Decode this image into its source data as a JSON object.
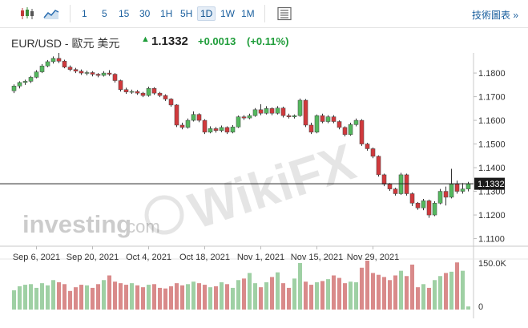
{
  "toolbar": {
    "timeframes": [
      "1",
      "5",
      "15",
      "30",
      "1H",
      "5H",
      "1D",
      "1W",
      "1M"
    ],
    "active_timeframe": "1D",
    "tech_link": "技術圖表 »"
  },
  "header": {
    "symbol": "EUR/USD - 歐元 美元",
    "price": "1.1332",
    "change": "+0.0013",
    "change_pct": "(+0.11%)",
    "up_color": "#1f9d3a"
  },
  "watermarks": {
    "investing_text": "investing",
    "investing_suffix": ".com",
    "wikifx_text": "WikiFX"
  },
  "chart_data": {
    "type": "candlestick",
    "price_axis": {
      "ticks": [
        "1.1800",
        "1.1700",
        "1.1600",
        "1.1500",
        "1.1400",
        "1.1300",
        "1.1200",
        "1.1100"
      ],
      "min": 1.1068,
      "max": 1.1885
    },
    "last_price_label": "1.1332",
    "x_ticks": [
      "Sep 6, 2021",
      "Sep 20, 2021",
      "Oct 4, 2021",
      "Oct 18, 2021",
      "Nov 1, 2021",
      "Nov 15, 2021",
      "Nov 29, 2021"
    ],
    "volume_axis": {
      "ticks": [
        "150.0K",
        "0"
      ],
      "max": 150
    },
    "colors": {
      "up": "#54b85e",
      "down": "#d0393c",
      "up_volume": "#9fd0a4",
      "down_volume": "#d98a8a",
      "axis": "#bbbbbb"
    },
    "candles": [
      [
        1.1725,
        1.1745,
        1.1715,
        1.1752
      ],
      [
        1.1745,
        1.176,
        1.1735,
        1.1765
      ],
      [
        1.176,
        1.1765,
        1.175,
        1.1772
      ],
      [
        1.1765,
        1.1782,
        1.1758,
        1.1788
      ],
      [
        1.1782,
        1.1805,
        1.1778,
        1.1812
      ],
      [
        1.1805,
        1.183,
        1.18,
        1.1838
      ],
      [
        1.183,
        1.1848,
        1.1825,
        1.1855
      ],
      [
        1.1848,
        1.1862,
        1.184,
        1.187
      ],
      [
        1.1862,
        1.185,
        1.1842,
        1.1885
      ],
      [
        1.185,
        1.1825,
        1.182,
        1.1856
      ],
      [
        1.1825,
        1.1815,
        1.1808,
        1.1832
      ],
      [
        1.1815,
        1.1808,
        1.18,
        1.1822
      ],
      [
        1.1808,
        1.18,
        1.1792,
        1.1815
      ],
      [
        1.18,
        1.1802,
        1.179,
        1.181
      ],
      [
        1.1802,
        1.1795,
        1.1786,
        1.1808
      ],
      [
        1.1795,
        1.179,
        1.1782,
        1.18
      ],
      [
        1.179,
        1.18,
        1.1785,
        1.1808
      ],
      [
        1.18,
        1.1795,
        1.1788,
        1.1812
      ],
      [
        1.1795,
        1.1768,
        1.176,
        1.18
      ],
      [
        1.1768,
        1.173,
        1.1722,
        1.1772
      ],
      [
        1.173,
        1.172,
        1.1712,
        1.1738
      ],
      [
        1.172,
        1.1722,
        1.1712,
        1.173
      ],
      [
        1.1722,
        1.1715,
        1.1708,
        1.1728
      ],
      [
        1.1715,
        1.1705,
        1.1698,
        1.172
      ],
      [
        1.1705,
        1.1735,
        1.17,
        1.1742
      ],
      [
        1.1735,
        1.1715,
        1.1708,
        1.174
      ],
      [
        1.1715,
        1.1705,
        1.1698,
        1.172
      ],
      [
        1.1705,
        1.169,
        1.1682,
        1.171
      ],
      [
        1.169,
        1.1665,
        1.1658,
        1.1694
      ],
      [
        1.1665,
        1.158,
        1.1572,
        1.1668
      ],
      [
        1.158,
        1.157,
        1.1562,
        1.159
      ],
      [
        1.157,
        1.16,
        1.1565,
        1.1608
      ],
      [
        1.16,
        1.1625,
        1.1595,
        1.1638
      ],
      [
        1.1625,
        1.16,
        1.1592,
        1.163
      ],
      [
        1.16,
        1.155,
        1.1542,
        1.1605
      ],
      [
        1.155,
        1.1565,
        1.1545,
        1.1575
      ],
      [
        1.1565,
        1.1557,
        1.1548,
        1.1572
      ],
      [
        1.1557,
        1.157,
        1.155,
        1.1578
      ],
      [
        1.157,
        1.155,
        1.1542,
        1.1575
      ],
      [
        1.155,
        1.1572,
        1.1545,
        1.158
      ],
      [
        1.1572,
        1.1615,
        1.1568,
        1.162
      ],
      [
        1.1615,
        1.161,
        1.1602,
        1.1622
      ],
      [
        1.161,
        1.162,
        1.1605,
        1.1628
      ],
      [
        1.162,
        1.1645,
        1.1615,
        1.1652
      ],
      [
        1.1645,
        1.163,
        1.1622,
        1.1668
      ],
      [
        1.163,
        1.165,
        1.1625,
        1.166
      ],
      [
        1.165,
        1.163,
        1.1622,
        1.1655
      ],
      [
        1.163,
        1.1652,
        1.1625,
        1.166
      ],
      [
        1.1652,
        1.162,
        1.1612,
        1.1658
      ],
      [
        1.162,
        1.1615,
        1.1608,
        1.1628
      ],
      [
        1.1615,
        1.162,
        1.1608,
        1.1625
      ],
      [
        1.162,
        1.1685,
        1.1615,
        1.1692
      ],
      [
        1.1685,
        1.158,
        1.1572,
        1.169
      ],
      [
        1.158,
        1.155,
        1.1542,
        1.159
      ],
      [
        1.155,
        1.162,
        1.1545,
        1.1625
      ],
      [
        1.162,
        1.1595,
        1.1588,
        1.1628
      ],
      [
        1.1595,
        1.1615,
        1.1588,
        1.1622
      ],
      [
        1.1615,
        1.1595,
        1.1588,
        1.1622
      ],
      [
        1.1595,
        1.157,
        1.1562,
        1.16
      ],
      [
        1.157,
        1.154,
        1.1532,
        1.1575
      ],
      [
        1.154,
        1.1582,
        1.1535,
        1.159
      ],
      [
        1.1582,
        1.16,
        1.1575,
        1.1608
      ],
      [
        1.16,
        1.15,
        1.1492,
        1.1605
      ],
      [
        1.15,
        1.148,
        1.1472,
        1.1505
      ],
      [
        1.148,
        1.1448,
        1.144,
        1.1485
      ],
      [
        1.1448,
        1.137,
        1.1362,
        1.1452
      ],
      [
        1.137,
        1.133,
        1.1322,
        1.1375
      ],
      [
        1.133,
        1.131,
        1.1302,
        1.1335
      ],
      [
        1.131,
        1.129,
        1.1282,
        1.1315
      ],
      [
        1.129,
        1.137,
        1.1285,
        1.1378
      ],
      [
        1.137,
        1.129,
        1.1282,
        1.1375
      ],
      [
        1.129,
        1.125,
        1.1238,
        1.1295
      ],
      [
        1.125,
        1.123,
        1.1222,
        1.1255
      ],
      [
        1.123,
        1.126,
        1.122,
        1.1268
      ],
      [
        1.126,
        1.12,
        1.1188,
        1.1265
      ],
      [
        1.12,
        1.125,
        1.1195,
        1.1258
      ],
      [
        1.125,
        1.13,
        1.1245,
        1.131
      ],
      [
        1.13,
        1.1275,
        1.124,
        1.132
      ],
      [
        1.1275,
        1.133,
        1.127,
        1.1395
      ],
      [
        1.133,
        1.13,
        1.129,
        1.1345
      ],
      [
        1.13,
        1.131,
        1.129,
        1.1335
      ],
      [
        1.131,
        1.1332,
        1.13,
        1.134
      ]
    ],
    "volumes": [
      62,
      75,
      80,
      82,
      70,
      85,
      78,
      95,
      88,
      82,
      60,
      72,
      80,
      78,
      70,
      82,
      95,
      110,
      90,
      85,
      80,
      85,
      78,
      72,
      80,
      82,
      70,
      68,
      75,
      85,
      78,
      82,
      90,
      85,
      80,
      72,
      75,
      88,
      82,
      70,
      95,
      100,
      118,
      85,
      72,
      88,
      105,
      120,
      85,
      70,
      100,
      150,
      90,
      80,
      88,
      92,
      98,
      110,
      102,
      85,
      90,
      88,
      135,
      158,
      118,
      112,
      105,
      95,
      110,
      125,
      108,
      145,
      72,
      82,
      70,
      95,
      108,
      118,
      122,
      152,
      125,
      10
    ]
  }
}
